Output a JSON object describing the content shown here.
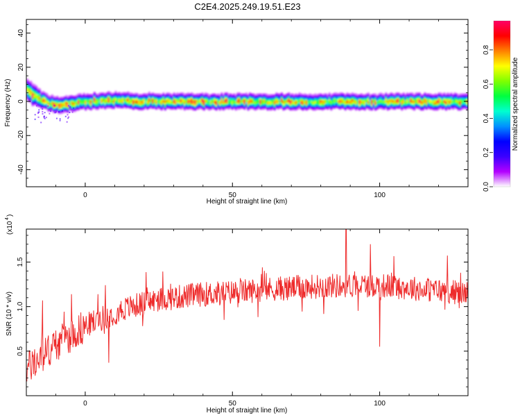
{
  "page": {
    "title": "C2E4.2025.249.19.51.E23"
  },
  "colorbar": {
    "label": "Normalized spectral amplitude",
    "ticks": [
      "0.0",
      "0.2",
      "0.4",
      "0.6",
      "0.8"
    ],
    "tick_values": [
      0.0,
      0.2,
      0.4,
      0.6,
      0.8
    ],
    "range": [
      0,
      0.97
    ],
    "stops": [
      "#ffffff",
      "#b300ff",
      "#3b00ff",
      "#0000ff",
      "#0090ff",
      "#00ffd0",
      "#00ff40",
      "#80ff00",
      "#ffff00",
      "#ff8000",
      "#ff0000",
      "#ff0066"
    ]
  },
  "chart_data": [
    {
      "type": "heatmap",
      "title": "C2E4.2025.249.19.51.E23",
      "xlabel": "Height of straight line (km)",
      "ylabel": "Frequency (Hz)",
      "xlim": [
        -20,
        130
      ],
      "ylim": [
        -50,
        48
      ],
      "xticks": [
        0,
        50,
        100
      ],
      "xtick_labels": [
        "0",
        "50",
        "100"
      ],
      "yticks": [
        -40,
        -20,
        0,
        20,
        40
      ],
      "ytick_labels": [
        "-40",
        "-20",
        "0",
        "20",
        "40"
      ],
      "ridge": {
        "x": [
          -20,
          -18,
          -16,
          -14,
          -12,
          -10,
          -8,
          -5,
          0,
          10,
          20,
          40,
          60,
          80,
          100,
          120,
          130
        ],
        "center_hz": [
          7,
          4,
          2,
          0,
          -1,
          -2,
          -2,
          -1,
          0,
          1,
          0,
          0,
          0,
          0,
          0,
          0,
          0
        ],
        "half_width_hz": [
          4,
          4,
          3.5,
          3,
          3,
          3,
          3,
          3,
          3,
          3,
          3,
          3,
          3,
          3,
          3,
          3,
          3
        ],
        "peak_amplitude": 0.95
      }
    },
    {
      "type": "line",
      "title": "",
      "xlabel": "Height of straight line (km)",
      "ylabel": "SNR (10 * v/v)",
      "scale_label_main": "(x10",
      "scale_label_exp": "4",
      "scale_label_end": ")",
      "xlim": [
        -20,
        130
      ],
      "ylim": [
        0.0,
        1.87
      ],
      "xticks": [
        0,
        50,
        100
      ],
      "xtick_labels": [
        "0",
        "50",
        "100"
      ],
      "yticks": [
        0.5,
        1.0,
        1.5
      ],
      "ytick_labels": [
        "0.5",
        "1.0",
        "1.5"
      ],
      "series": [
        {
          "name": "SNR",
          "color": "#ee2b2b",
          "x": [
            -20,
            -16,
            -12,
            -8,
            -4,
            0,
            4,
            8,
            12,
            16,
            20,
            25,
            30,
            40,
            50,
            60,
            70,
            80,
            90,
            100,
            110,
            120,
            130
          ],
          "y": [
            0.3,
            0.4,
            0.52,
            0.62,
            0.7,
            0.78,
            0.85,
            0.9,
            0.96,
            1.0,
            1.04,
            1.08,
            1.1,
            1.14,
            1.16,
            1.19,
            1.21,
            1.23,
            1.24,
            1.24,
            1.21,
            1.18,
            1.15
          ],
          "noise_amplitude": 0.14,
          "highlights": [
            {
              "x": 88.6,
              "y": 1.87
            },
            {
              "x": 96.8,
              "y": 1.7
            },
            {
              "x": 100.0,
              "y": 0.55
            },
            {
              "x": 8.0,
              "y": 0.37
            },
            {
              "x": -14.5,
              "y": 1.07
            }
          ]
        }
      ]
    }
  ]
}
